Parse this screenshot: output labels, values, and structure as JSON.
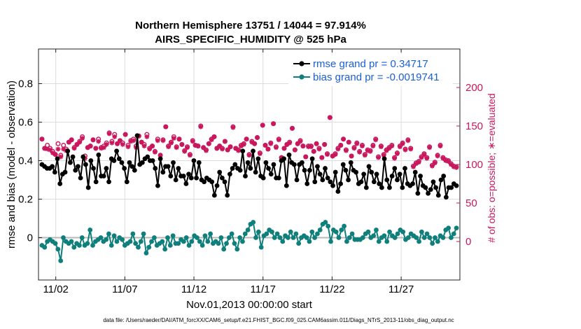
{
  "chart_data": {
    "type": "line",
    "title_line1": "Northern Hemisphere 13751 / 14044 = 97.914%",
    "title_line2": "AIRS_SPECIFIC_HUMIDITY @ 525 hPa",
    "xlabel": "Nov.01,2013 00:00:00 start",
    "ylabel": "rmse and bias (model - observation)",
    "y2label": "# of obs: o=possible; ∗=evaluated",
    "x_tick_labels": [
      "11/02",
      "11/07",
      "11/12",
      "11/17",
      "11/22",
      "11/27"
    ],
    "x_tick_days": [
      2,
      7,
      12,
      17,
      22,
      27
    ],
    "y_ticks": [
      0,
      0.2,
      0.4,
      0.6,
      0.8
    ],
    "y_tick_labels": [
      "0",
      "0.2",
      "0.4",
      "0.6",
      "0.8"
    ],
    "y2_ticks": [
      0,
      50,
      100,
      150,
      200
    ],
    "y2_tick_labels": [
      "0",
      "50",
      "100",
      "150",
      "200"
    ],
    "xlim": [
      0.75,
      31.25
    ],
    "ylim": [
      -0.22,
      0.98
    ],
    "y2lim": [
      -50,
      250
    ],
    "footnote": "data file: /Users/raeder/DAI/ATM_forcXX/CAM6_setup/f.e21.FHIST_BGC.f09_025.CAM6assim.011/Diags_NTrS_2013-11/obs_diag_output.nc",
    "colors": {
      "rmse": "#000000",
      "bias": "#0e7f7a",
      "obs": "#c8175d",
      "legend_text": "#1a5fd6",
      "zero_line": "#b8b8b8"
    },
    "legend": {
      "placement": "top-right",
      "entries": [
        "rmse grand pr = 0.34717",
        "bias grand pr = -0.0019741"
      ]
    },
    "series": [
      {
        "name": "rmse grand pr = 0.34717",
        "color": "#000000",
        "marker": "filled-circle",
        "axis": "left",
        "values": [
          0.38,
          0.37,
          0.36,
          0.36,
          0.37,
          0.34,
          0.41,
          0.28,
          0.33,
          0.34,
          0.45,
          0.39,
          0.42,
          0.35,
          0.37,
          0.31,
          0.42,
          0.38,
          0.26,
          0.4,
          0.36,
          0.29,
          0.43,
          0.32,
          0.32,
          0.36,
          0.29,
          0.41,
          0.4,
          0.45,
          0.41,
          0.39,
          0.36,
          0.29,
          0.39,
          0.37,
          0.35,
          0.53,
          0.38,
          0.39,
          0.41,
          0.42,
          0.4,
          0.4,
          0.36,
          0.27,
          0.41,
          0.34,
          0.37,
          0.37,
          0.32,
          0.39,
          0.3,
          0.36,
          0.32,
          0.32,
          0.28,
          0.33,
          0.31,
          0.4,
          0.31,
          0.39,
          0.3,
          0.29,
          0.31,
          0.3,
          0.29,
          0.22,
          0.27,
          0.34,
          0.31,
          0.29,
          0.22,
          0.33,
          0.36,
          0.38,
          0.36,
          0.35,
          0.45,
          0.32,
          0.39,
          0.36,
          0.45,
          0.34,
          0.41,
          0.32,
          0.31,
          0.39,
          0.36,
          0.33,
          0.38,
          0.31,
          0.31,
          0.4,
          0.41,
          0.27,
          0.43,
          0.39,
          0.38,
          0.3,
          0.38,
          0.39,
          0.35,
          0.28,
          0.35,
          0.41,
          0.29,
          0.37,
          0.33,
          0.3,
          0.36,
          0.31,
          0.29,
          0.27,
          0.34,
          0.24,
          0.28,
          0.38,
          0.35,
          0.3,
          0.39,
          0.35,
          0.34,
          0.28,
          0.29,
          0.33,
          0.26,
          0.37,
          0.34,
          0.29,
          0.33,
          0.28,
          0.26,
          0.41,
          0.3,
          0.26,
          0.32,
          0.36,
          0.3,
          0.33,
          0.26,
          0.36,
          0.28,
          0.27,
          0.28,
          0.34,
          0.23,
          0.32,
          0.27,
          0.26,
          0.23,
          0.25,
          0.29,
          0.26,
          0.22,
          0.3,
          0.32,
          0.21,
          0.26,
          0.26,
          0.28,
          0.27
        ]
      },
      {
        "name": "bias grand pr = -0.0019741",
        "color": "#0e7f7a",
        "marker": "filled-circle",
        "axis": "left",
        "values": [
          -0.04,
          -0.05,
          -0.02,
          -0.01,
          -0.02,
          -0.03,
          -0.06,
          -0.12,
          0.0,
          -0.02,
          -0.03,
          -0.02,
          -0.05,
          -0.03,
          -0.04,
          0.0,
          -0.04,
          -0.03,
          0.04,
          -0.04,
          -0.02,
          -0.01,
          0.0,
          -0.02,
          -0.01,
          0.02,
          -0.04,
          0.01,
          -0.02,
          0.0,
          -0.01,
          -0.04,
          -0.03,
          -0.02,
          0.02,
          -0.03,
          -0.05,
          -0.02,
          0.02,
          -0.08,
          -0.05,
          -0.02,
          0.0,
          -0.04,
          -0.03,
          -0.02,
          -0.06,
          0.0,
          -0.04,
          0.01,
          -0.03,
          -0.03,
          -0.01,
          -0.02,
          0.0,
          -0.04,
          -0.02,
          0.01,
          0.0,
          -0.02,
          -0.04,
          0.01,
          -0.02,
          0.02,
          -0.03,
          -0.02,
          -0.03,
          0.0,
          -0.06,
          -0.03,
          0.0,
          0.02,
          -0.03,
          -0.06,
          0.0,
          -0.02,
          0.02,
          0.04,
          0.07,
          0.08,
          0.0,
          0.03,
          -0.05,
          0.01,
          0.02,
          0.04,
          0.03,
          0.0,
          0.02,
          0.0,
          -0.02,
          0.01,
          0.0,
          0.03,
          0.0,
          0.02,
          -0.03,
          0.0,
          0.01,
          0.0,
          -0.02,
          0.03,
          0.0,
          0.02,
          0.04,
          0.07,
          0.08,
          0.06,
          -0.02,
          0.04,
          0.03,
          0.0,
          0.04,
          0.06,
          -0.02,
          0.0,
          0.02,
          -0.01,
          -0.01,
          -0.01,
          0.0,
          0.02,
          0.03,
          0.0,
          0.01,
          0.04,
          -0.02,
          0.0,
          0.01,
          -0.02,
          0.03,
          0.01,
          0.0,
          0.02,
          0.04,
          0.03,
          -0.01,
          0.0,
          0.02,
          0.01,
          0.0,
          -0.02,
          0.03,
          0.0,
          0.02,
          0.0,
          -0.03,
          0.0,
          -0.02,
          0.01,
          0.0,
          0.04,
          0.05,
          0.0,
          0.02,
          0.05
        ]
      },
      {
        "name": "# of obs possible",
        "color": "#c8175d",
        "marker": "open-circle",
        "axis": "right",
        "values": [
          133,
          121,
          125,
          121,
          117,
          113,
          127,
          112,
          125,
          120,
          129,
          132,
          122,
          126,
          130,
          136,
          111,
          122,
          124,
          132,
          121,
          133,
          122,
          124,
          128,
          141,
          130,
          139,
          127,
          131,
          128,
          139,
          125,
          131,
          133,
          124,
          137,
          129,
          126,
          139,
          121,
          124,
          117,
          133,
          112,
          132,
          149,
          124,
          129,
          136,
          123,
          133,
          126,
          118,
          123,
          113,
          131,
          125,
          124,
          150,
          122,
          119,
          127,
          133,
          136,
          121,
          124,
          121,
          130,
          119,
          123,
          149,
          121,
          119,
          125,
          127,
          133,
          113,
          130,
          127,
          135,
          115,
          151,
          125,
          120,
          128,
          153,
          123,
          133,
          109,
          121,
          126,
          129,
          147,
          119,
          127,
          131,
          124,
          110,
          124,
          124,
          117,
          127,
          121,
          109,
          126,
          114,
          161,
          111,
          114,
          121,
          125,
          133,
          119,
          129,
          111,
          122,
          128,
          117,
          125,
          113,
          119,
          118,
          125,
          133,
          110,
          124,
          113,
          119,
          122,
          125,
          109,
          115,
          124,
          128,
          120,
          132,
          121,
          98,
          102,
          104,
          110,
          114,
          109,
          123,
          99,
          103,
          112,
          125,
          109,
          106,
          105,
          101,
          98,
          97
        ]
      },
      {
        "name": "# of obs evaluated",
        "color": "#c8175d",
        "marker": "asterisk",
        "axis": "right",
        "values": [
          133,
          121,
          120,
          119,
          115,
          113,
          120,
          110,
          120,
          118,
          129,
          132,
          121,
          126,
          129,
          134,
          108,
          122,
          124,
          132,
          121,
          130,
          121,
          122,
          126,
          140,
          128,
          136,
          127,
          131,
          126,
          139,
          123,
          130,
          131,
          122,
          137,
          129,
          124,
          136,
          120,
          124,
          116,
          131,
          112,
          131,
          149,
          123,
          128,
          134,
          122,
          133,
          126,
          117,
          122,
          112,
          130,
          125,
          124,
          149,
          122,
          118,
          127,
          132,
          136,
          121,
          124,
          120,
          130,
          119,
          123,
          148,
          121,
          118,
          124,
          126,
          133,
          112,
          129,
          127,
          135,
          114,
          151,
          125,
          120,
          127,
          153,
          122,
          132,
          109,
          121,
          126,
          128,
          147,
          119,
          127,
          130,
          124,
          110,
          123,
          123,
          117,
          127,
          120,
          109,
          126,
          113,
          161,
          111,
          113,
          120,
          125,
          133,
          118,
          129,
          111,
          121,
          127,
          116,
          124,
          112,
          118,
          117,
          124,
          132,
          109,
          123,
          112,
          118,
          121,
          124,
          108,
          114,
          123,
          127,
          119,
          131,
          120,
          97,
          101,
          103,
          109,
          113,
          108,
          122,
          98,
          102,
          111,
          124,
          108,
          105,
          104,
          100,
          97,
          96
        ]
      }
    ]
  }
}
